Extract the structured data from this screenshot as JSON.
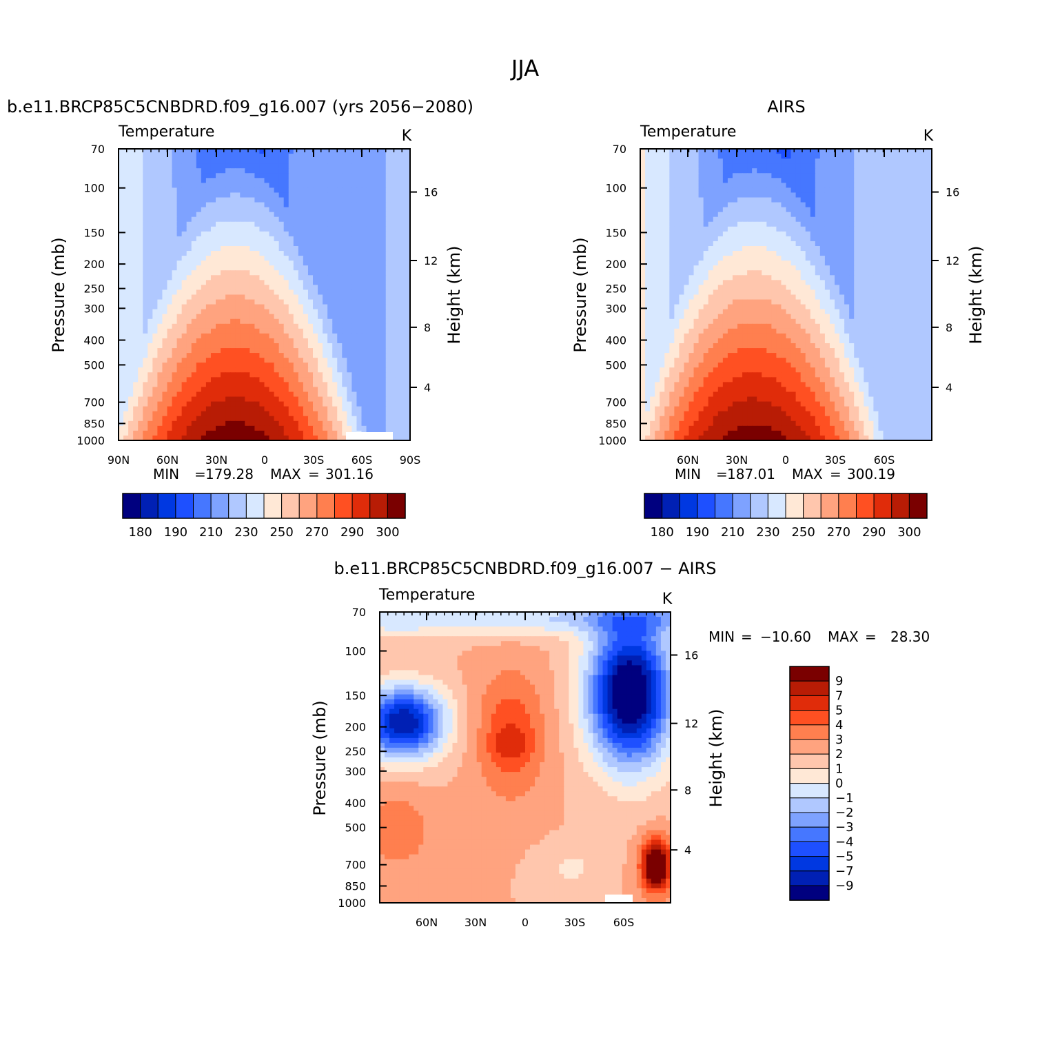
{
  "figure": {
    "title": "JJA"
  },
  "colors": {
    "full_field_scale": [
      "#00007f",
      "#0020b4",
      "#0038e1",
      "#1e50ff",
      "#4677ff",
      "#7ea2ff",
      "#b0c8ff",
      "#d8e8ff",
      "#ffe8d6",
      "#ffc6ad",
      "#ffa37f",
      "#ff7f4f",
      "#ff5022",
      "#e02c0a",
      "#b81c05",
      "#7a0000"
    ],
    "diff_scale": [
      "#00007f",
      "#0020b4",
      "#0038e1",
      "#1e50ff",
      "#4677ff",
      "#7ea2ff",
      "#b0c8ff",
      "#d8e8ff",
      "#ffe8d6",
      "#ffc6ad",
      "#ffa37f",
      "#ff7f4f",
      "#ff5022",
      "#e02c0a",
      "#b81c05",
      "#7a0000"
    ]
  },
  "chart_data": [
    {
      "type": "heatmap",
      "title": "b.e11.BRCP85C5CNBDRD.f09_g16.007 (yrs 2056−2080)",
      "left_label": "Temperature",
      "units": "K",
      "xlabel": "",
      "ylabel": "Pressure (mb)",
      "ylabel_right": "Height (km)",
      "x_ticks": [
        "90N",
        "60N",
        "30N",
        "0",
        "30S",
        "60S",
        "90S"
      ],
      "y_ticks": [
        "70",
        "100",
        "150",
        "200",
        "250",
        "300",
        "400",
        "500",
        "700",
        "850",
        "1000"
      ],
      "y_right_ticks": [
        "16",
        "12",
        "8",
        "4"
      ],
      "min_label": "MIN",
      "min": "179.28",
      "max_label": "MAX",
      "max": "301.16",
      "colorbar_labels": [
        "180",
        "190",
        "210",
        "230",
        "250",
        "270",
        "290",
        "300"
      ],
      "grid": false
    },
    {
      "type": "heatmap",
      "title": "AIRS",
      "left_label": "Temperature",
      "units": "K",
      "xlabel": "",
      "ylabel": "Pressure (mb)",
      "ylabel_right": "Height (km)",
      "x_ticks": [
        "60N",
        "30N",
        "0",
        "30S",
        "60S"
      ],
      "y_ticks": [
        "70",
        "100",
        "150",
        "200",
        "250",
        "300",
        "400",
        "500",
        "700",
        "850",
        "1000"
      ],
      "y_right_ticks": [
        "16",
        "12",
        "8",
        "4"
      ],
      "min_label": "MIN",
      "min": "187.01",
      "max_label": "MAX",
      "max": "300.19",
      "colorbar_labels": [
        "180",
        "190",
        "210",
        "230",
        "250",
        "270",
        "290",
        "300"
      ],
      "grid": false
    },
    {
      "type": "heatmap",
      "title": "b.e11.BRCP85C5CNBDRD.f09_g16.007 − AIRS",
      "left_label": "Temperature",
      "units": "K",
      "xlabel": "",
      "ylabel": "Pressure (mb)",
      "ylabel_right": "Height (km)",
      "x_ticks": [
        "60N",
        "30N",
        "0",
        "30S",
        "60S"
      ],
      "y_ticks": [
        "70",
        "100",
        "150",
        "200",
        "250",
        "300",
        "400",
        "500",
        "700",
        "850",
        "1000"
      ],
      "y_right_ticks": [
        "16",
        "12",
        "8",
        "4"
      ],
      "min_label": "MIN",
      "min": "−10.60",
      "max_label": "MAX",
      "max": "28.30",
      "colorbar_labels": [
        "9",
        "7",
        "5",
        "4",
        "3",
        "2",
        "1",
        "0",
        "−1",
        "−2",
        "−3",
        "−4",
        "−5",
        "−7",
        "−9"
      ],
      "grid": false
    }
  ]
}
